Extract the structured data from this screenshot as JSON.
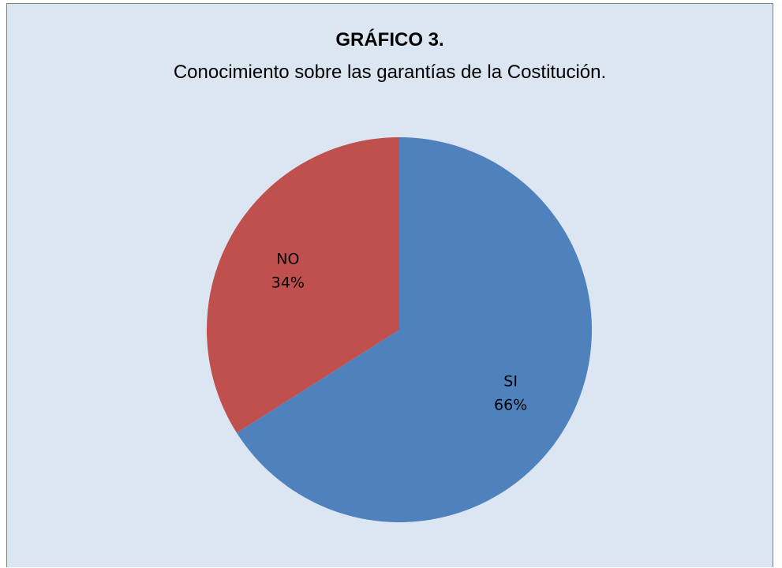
{
  "chart_data": {
    "type": "pie",
    "title": "GRÁFICO 3.",
    "subtitle": "Conocimiento sobre las garantías de la Costitución.",
    "slices": [
      {
        "label": "SI",
        "value": 66,
        "value_label": "66%",
        "color": "#4f81bd"
      },
      {
        "label": "NO",
        "value": 34,
        "value_label": "34%",
        "color": "#c0504d"
      }
    ]
  }
}
